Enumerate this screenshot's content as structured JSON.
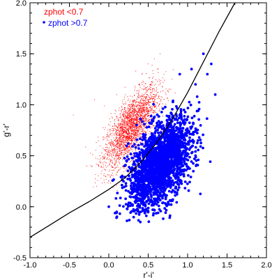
{
  "chart_data": {
    "type": "scatter",
    "title": "",
    "xlabel": "r'-i'",
    "ylabel": "g'-r'",
    "xlim": [
      -1.0,
      2.0
    ],
    "ylim": [
      -0.5,
      2.0
    ],
    "xticks": [
      -1.0,
      -0.5,
      0.0,
      0.5,
      1.0,
      1.5,
      2.0
    ],
    "yticks": [
      -0.5,
      0.0,
      0.5,
      1.0,
      1.5,
      2.0
    ],
    "xtick_labels": [
      "-1.0",
      "-0.5",
      "0.0",
      "0.5",
      "1.0",
      "1.5",
      "2.0"
    ],
    "ytick_labels": [
      "-0.5",
      "0.0",
      "0.5",
      "1.0",
      "1.5",
      "2.0"
    ],
    "grid": false,
    "legend_position": "top-left",
    "series": [
      {
        "name": "zphot <0.7",
        "marker": "small dot",
        "color": "#ff0000",
        "distribution": {
          "count": 2500,
          "x_center": 0.28,
          "x_spread": 0.17,
          "y_center": 0.78,
          "y_spread": 0.2,
          "correlation": 0.72,
          "x_range": [
            -0.3,
            1.1
          ],
          "y_range": [
            0.15,
            1.5
          ]
        },
        "outliers": [
          [
            -0.45,
            0.9
          ],
          [
            -0.28,
            0.4
          ],
          [
            0.42,
            1.3
          ],
          [
            0.58,
            1.45
          ],
          [
            0.7,
            1.3
          ],
          [
            0.8,
            1.25
          ],
          [
            0.65,
            1.5
          ],
          [
            0.1,
            1.1
          ],
          [
            -0.18,
            1.05
          ],
          [
            0.5,
            1.4
          ]
        ]
      },
      {
        "name": "zphot >0.7",
        "marker": "filled circle",
        "color": "#0000ff",
        "distribution": {
          "count": 2200,
          "x_center": 0.65,
          "x_spread": 0.2,
          "y_center": 0.42,
          "y_spread": 0.22,
          "correlation": 0.5,
          "x_range": [
            0.0,
            1.35
          ],
          "y_range": [
            -0.15,
            1.5
          ]
        },
        "outliers": [
          [
            1.2,
            1.5
          ],
          [
            1.3,
            1.4
          ],
          [
            1.25,
            1.3
          ],
          [
            1.1,
            1.2
          ],
          [
            1.35,
            1.1
          ],
          [
            0.0,
            0.0
          ],
          [
            0.1,
            -0.05
          ],
          [
            0.4,
            -0.15
          ],
          [
            1.05,
            1.35
          ],
          [
            0.9,
            1.3
          ]
        ]
      },
      {
        "name": "",
        "type": "line",
        "color": "#000000",
        "x": [
          -1.0,
          -0.75,
          -0.5,
          -0.25,
          0.0,
          0.2,
          0.4,
          0.6,
          0.8,
          1.0,
          1.2,
          1.4,
          1.6
        ],
        "y": [
          -0.3,
          -0.18,
          -0.06,
          0.05,
          0.17,
          0.28,
          0.43,
          0.62,
          0.85,
          1.12,
          1.42,
          1.72,
          2.02
        ]
      }
    ]
  }
}
